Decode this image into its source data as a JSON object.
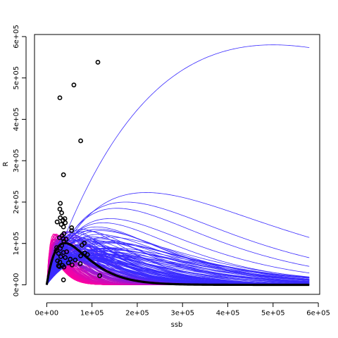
{
  "chart_data": {
    "type": "scatter",
    "xlabel": "ssb",
    "ylabel": "R",
    "xlim": [
      -27000,
      603000
    ],
    "ylim": [
      -23000,
      605000
    ],
    "x_ticks": [
      {
        "value": 0,
        "label": "0e+00"
      },
      {
        "value": 100000,
        "label": "1e+05"
      },
      {
        "value": 200000,
        "label": "2e+05"
      },
      {
        "value": 300000,
        "label": "3e+05"
      },
      {
        "value": 400000,
        "label": "4e+05"
      },
      {
        "value": 500000,
        "label": "5e+05"
      },
      {
        "value": 600000,
        "label": "6e+05"
      }
    ],
    "y_ticks": [
      {
        "value": 0,
        "label": "0e+00"
      },
      {
        "value": 100000,
        "label": "1e+05"
      },
      {
        "value": 200000,
        "label": "2e+05"
      },
      {
        "value": 300000,
        "label": "3e+05"
      },
      {
        "value": 400000,
        "label": "4e+05"
      },
      {
        "value": 500000,
        "label": "5e+05"
      },
      {
        "value": 600000,
        "label": "6e+05"
      }
    ],
    "curve_x_max": 580000,
    "bold_curve": {
      "model": "ricker",
      "peak_ssb": 40000,
      "peak_r": 101000,
      "color": "#000000"
    },
    "observations": [
      [
        113000,
        538000
      ],
      [
        29000,
        452000
      ],
      [
        60000,
        483000
      ],
      [
        75000,
        348000
      ],
      [
        37000,
        266000
      ],
      [
        30000,
        197000
      ],
      [
        29000,
        183000
      ],
      [
        33000,
        174000
      ],
      [
        30000,
        162000
      ],
      [
        40000,
        160000
      ],
      [
        36000,
        156000
      ],
      [
        23000,
        152000
      ],
      [
        41000,
        150000
      ],
      [
        32000,
        146000
      ],
      [
        37000,
        140000
      ],
      [
        55000,
        138000
      ],
      [
        55000,
        131000
      ],
      [
        38000,
        124000
      ],
      [
        34000,
        119000
      ],
      [
        28000,
        114000
      ],
      [
        36000,
        112000
      ],
      [
        43000,
        110000
      ],
      [
        38000,
        105000
      ],
      [
        83000,
        101000
      ],
      [
        78000,
        96000
      ],
      [
        33000,
        95000
      ],
      [
        22000,
        90000
      ],
      [
        30000,
        88000
      ],
      [
        21000,
        82000
      ],
      [
        44000,
        80000
      ],
      [
        37000,
        78000
      ],
      [
        26000,
        76000
      ],
      [
        84000,
        77000
      ],
      [
        90000,
        73000
      ],
      [
        75000,
        70000
      ],
      [
        31000,
        68000
      ],
      [
        41000,
        66000
      ],
      [
        52000,
        62000
      ],
      [
        63000,
        60000
      ],
      [
        24000,
        58000
      ],
      [
        29000,
        55000
      ],
      [
        48000,
        53000
      ],
      [
        74000,
        51000
      ],
      [
        56000,
        48000
      ],
      [
        35000,
        47000
      ],
      [
        26000,
        46000
      ],
      [
        28000,
        44000
      ],
      [
        38000,
        43000
      ],
      [
        117000,
        22000
      ],
      [
        37000,
        12000
      ]
    ],
    "grid": false,
    "colors": {
      "bold_curve": "#000000",
      "points": "#000000",
      "curve_low": "#ff00a0",
      "curve_high": "#3a2bff",
      "axis": "#000000"
    }
  }
}
